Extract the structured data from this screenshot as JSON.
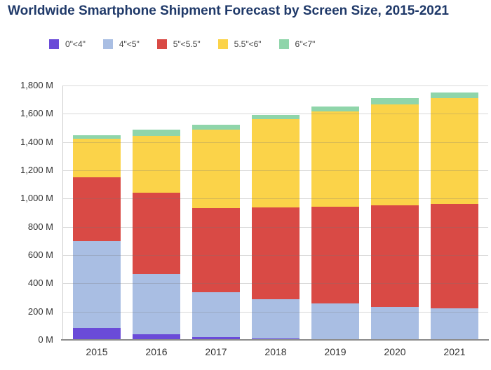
{
  "chart_data": {
    "type": "bar",
    "stacked": true,
    "title": "Worldwide Smartphone Shipment Forecast by Screen Size, 2015-2021",
    "xlabel": "",
    "ylabel": "",
    "unit": "M",
    "categories": [
      "2015",
      "2016",
      "2017",
      "2018",
      "2019",
      "2020",
      "2021"
    ],
    "series": [
      {
        "name": "0\"<4\"",
        "color": "#6A4BD8",
        "values": [
          85,
          42,
          20,
          8,
          4,
          2,
          2
        ]
      },
      {
        "name": "4\"<5\"",
        "color": "#A9BEE3",
        "values": [
          612,
          423,
          315,
          282,
          256,
          233,
          221
        ]
      },
      {
        "name": "5\"<5.5\"",
        "color": "#D94A45",
        "values": [
          453,
          577,
          597,
          645,
          683,
          719,
          740
        ]
      },
      {
        "name": "5.5\"<6\"",
        "color": "#FBD349",
        "values": [
          274,
          403,
          558,
          625,
          672,
          713,
          747
        ]
      },
      {
        "name": "6\"<7\"",
        "color": "#8FD5AA",
        "values": [
          26,
          41,
          35,
          30,
          37,
          43,
          40
        ]
      }
    ],
    "totals": [
      1450,
      1486,
      1525,
      1590,
      1652,
      1710,
      1750
    ],
    "ylim": [
      0,
      1800
    ],
    "ytick_step": 200,
    "ytick_suffix": " M",
    "ytick_labels": [
      "0 M",
      "200 M",
      "400 M",
      "600 M",
      "800 M",
      "1,000 M",
      "1,200 M",
      "1,400 M",
      "1,600 M",
      "1,800 M"
    ],
    "grid": true,
    "legend_position": "top"
  },
  "colors": {
    "title": "#1F3969",
    "axis_text": "#333333",
    "legend_text": "#404040",
    "gridline": "rgba(120,120,120,0.28)",
    "x_axis_line": "#8C8C8C",
    "y_axis_line": "#CFCFCF",
    "background": "#FFFFFF"
  }
}
